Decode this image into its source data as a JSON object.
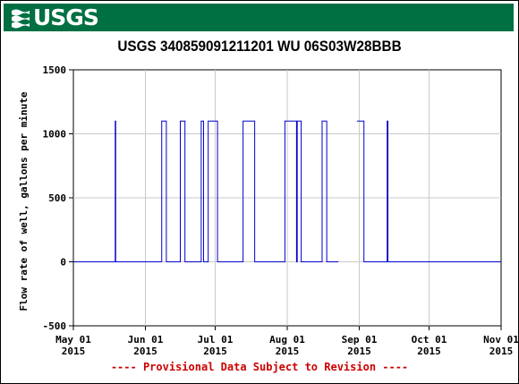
{
  "header": {
    "logo_text": "USGS"
  },
  "chart_data": {
    "type": "line",
    "title": "USGS 340859091211201 WU 06S03W28BBB",
    "ylabel": "Flow rate of well, gallons per minute",
    "xlabel": "",
    "ylim": [
      -500,
      1500
    ],
    "yticks": [
      -500,
      0,
      500,
      1000,
      1500
    ],
    "xlim": [
      "2015-05-01",
      "2015-11-01"
    ],
    "xticks": [
      {
        "date": "2015-05-01",
        "label1": "May 01",
        "label2": "2015"
      },
      {
        "date": "2015-06-01",
        "label1": "Jun 01",
        "label2": "2015"
      },
      {
        "date": "2015-07-01",
        "label1": "Jul 01",
        "label2": "2015"
      },
      {
        "date": "2015-08-01",
        "label1": "Aug 01",
        "label2": "2015"
      },
      {
        "date": "2015-09-01",
        "label1": "Sep 01",
        "label2": "2015"
      },
      {
        "date": "2015-10-01",
        "label1": "Oct 01",
        "label2": "2015"
      },
      {
        "date": "2015-11-01",
        "label1": "Nov 01",
        "label2": "2015"
      }
    ],
    "grid": true,
    "line_color": "#0000cc",
    "series": [
      {
        "segments": [
          [
            [
              "2015-05-01",
              0
            ],
            [
              "2015-05-19",
              0
            ],
            [
              "2015-05-19",
              1100
            ],
            [
              "2015-05-19.2",
              1100
            ],
            [
              "2015-05-19.2",
              0
            ],
            [
              "2015-06-08",
              0
            ],
            [
              "2015-06-08",
              1100
            ],
            [
              "2015-06-10",
              1100
            ],
            [
              "2015-06-10",
              0
            ],
            [
              "2015-06-16",
              0
            ],
            [
              "2015-06-16",
              1100
            ],
            [
              "2015-06-18",
              1100
            ],
            [
              "2015-06-18",
              0
            ],
            [
              "2015-06-25",
              0
            ],
            [
              "2015-06-25",
              1100
            ],
            [
              "2015-06-26",
              1100
            ],
            [
              "2015-06-26",
              0
            ],
            [
              "2015-06-28",
              0
            ],
            [
              "2015-06-28",
              1100
            ],
            [
              "2015-07-02",
              1100
            ],
            [
              "2015-07-02",
              0
            ],
            [
              "2015-07-13",
              0
            ],
            [
              "2015-07-13",
              1100
            ],
            [
              "2015-07-18",
              1100
            ],
            [
              "2015-07-18",
              0
            ],
            [
              "2015-07-31",
              0
            ],
            [
              "2015-07-31",
              1100
            ],
            [
              "2015-08-05",
              1100
            ],
            [
              "2015-08-05",
              0
            ],
            [
              "2015-08-05.3",
              0
            ],
            [
              "2015-08-05.3",
              1100
            ],
            [
              "2015-08-07",
              1100
            ],
            [
              "2015-08-07",
              0
            ],
            [
              "2015-08-16",
              0
            ],
            [
              "2015-08-16",
              1100
            ],
            [
              "2015-08-18",
              1100
            ],
            [
              "2015-08-18",
              0
            ],
            [
              "2015-08-23",
              0
            ]
          ],
          [
            [
              "2015-08-31",
              1100
            ],
            [
              "2015-09-03",
              1100
            ],
            [
              "2015-09-03",
              0
            ],
            [
              "2015-09-13",
              0
            ],
            [
              "2015-09-13",
              1100
            ],
            [
              "2015-09-13.3",
              1100
            ],
            [
              "2015-09-13.3",
              0
            ],
            [
              "2015-11-01",
              0
            ]
          ]
        ]
      }
    ]
  },
  "footnote": "---- Provisional Data Subject to Revision ----"
}
